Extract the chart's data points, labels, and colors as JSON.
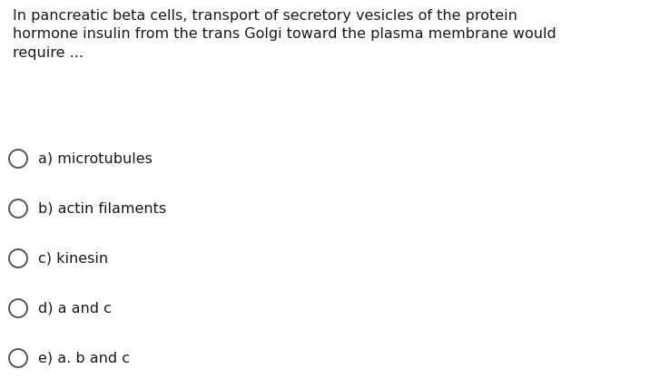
{
  "background_color": "#ffffff",
  "question_text": "In pancreatic beta cells, transport of secretory vesicles of the protein\nhormone insulin from the trans Golgi toward the plasma membrane would\nrequire ...",
  "question_fontsize": 11.5,
  "question_color": "#1a1a1a",
  "options": [
    "a) microtubules",
    "b) actin filaments",
    "c) kinesin",
    "d) a and c",
    "e) a. b and c"
  ],
  "option_fontsize": 11.5,
  "option_color": "#1a1a1a",
  "circle_color": "#555555",
  "circle_linewidth": 1.4,
  "fig_width": 7.16,
  "fig_height": 4.18,
  "dpi": 100
}
